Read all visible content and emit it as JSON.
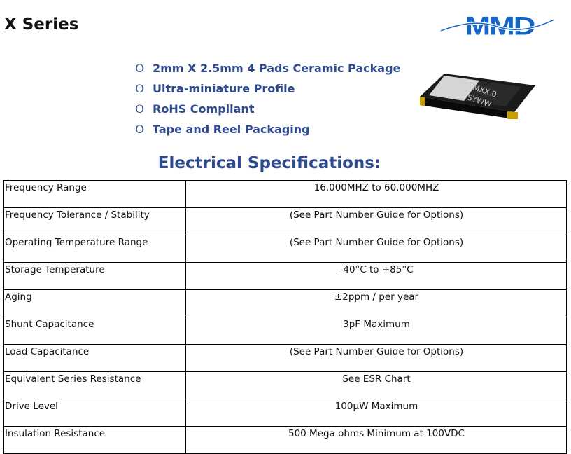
{
  "title": "X Series",
  "logo": {
    "text": "MMD",
    "color": "#1565c8"
  },
  "features": [
    "2mm X 2.5mm 4 Pads Ceramic Package",
    "Ultra-miniature Profile",
    "RoHS Compliant",
    "Tape and Reel Packaging"
  ],
  "bullet": "O",
  "chip_marking": [
    "MXX.0",
    "SYWW"
  ],
  "heading": "Electrical Specifications:",
  "specs": [
    {
      "label": "Frequency Range",
      "value": "16.000MHZ to 60.000MHZ"
    },
    {
      "label": "Frequency Tolerance / Stability",
      "value": "(See Part Number Guide for Options)"
    },
    {
      "label": "Operating Temperature Range",
      "value": "(See Part Number Guide for Options)"
    },
    {
      "label": "Storage Temperature",
      "value": "-40°C to +85°C"
    },
    {
      "label": "Aging",
      "value": "±2ppm / per year"
    },
    {
      "label": "Shunt Capacitance",
      "value": "3pF Maximum"
    },
    {
      "label": "Load Capacitance",
      "value": "(See Part Number Guide for Options)"
    },
    {
      "label": "Equivalent Series Resistance",
      "value": "See ESR Chart"
    },
    {
      "label": "Drive Level",
      "value": "100µW Maximum"
    },
    {
      "label": "Insulation Resistance",
      "value": "500 Mega ohms Minimum at 100VDC"
    }
  ]
}
